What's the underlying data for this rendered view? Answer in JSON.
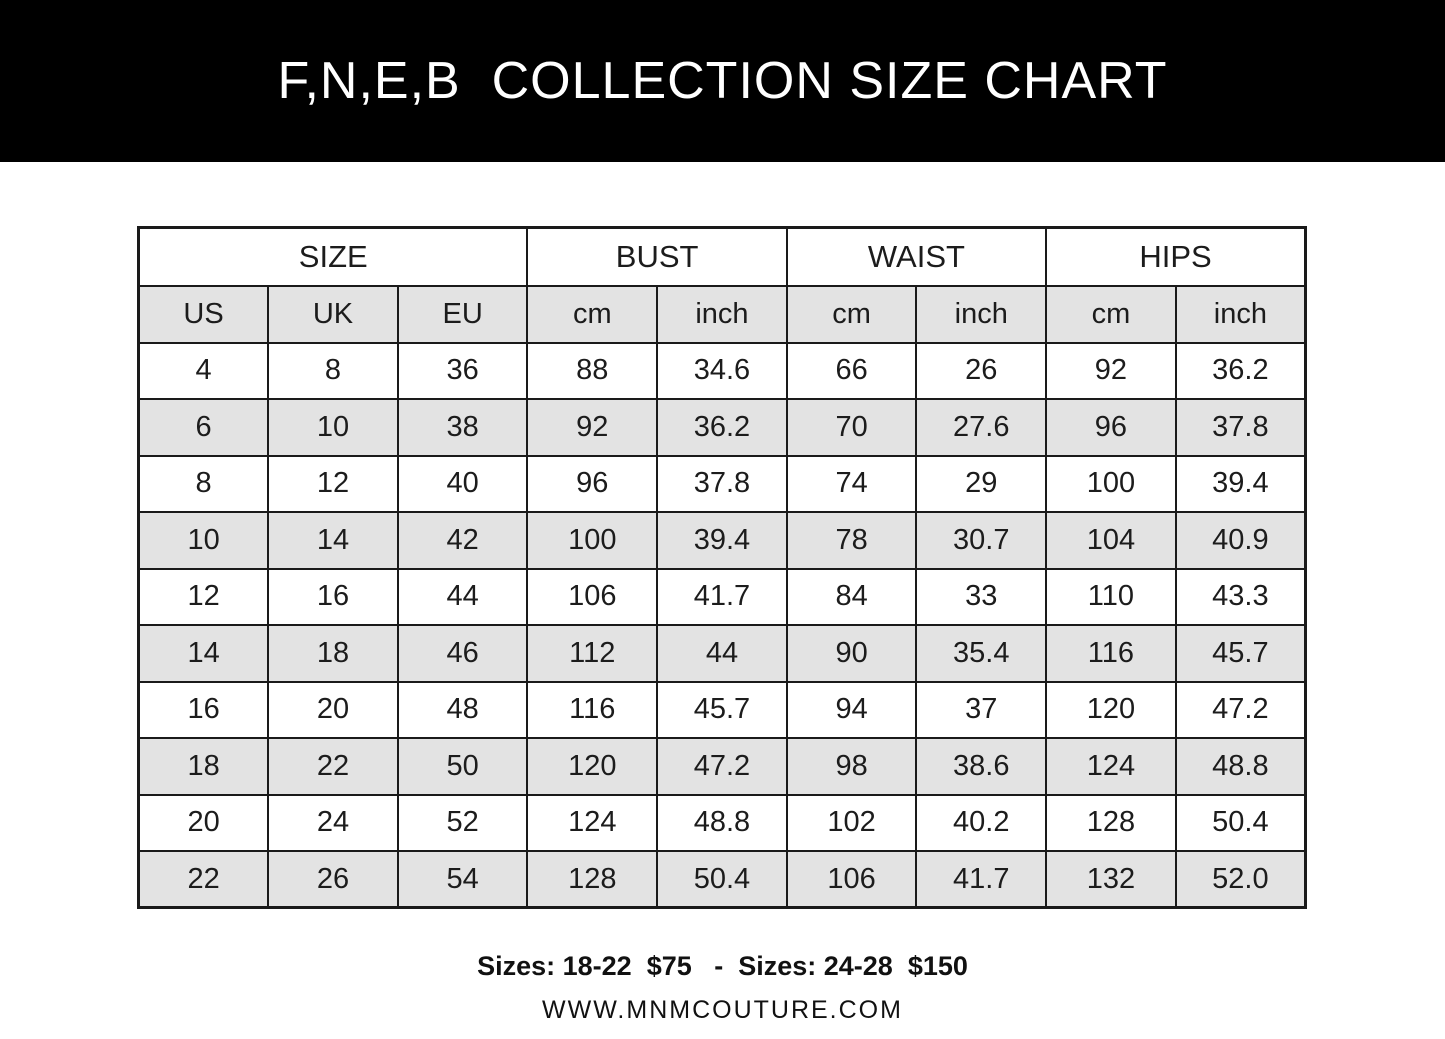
{
  "banner": {
    "title": "F,N,E,B  COLLECTION SIZE CHART",
    "background_color": "#000000",
    "text_color": "#ffffff"
  },
  "size_chart": {
    "column_groups": [
      {
        "label": "SIZE",
        "span": 3
      },
      {
        "label": "BUST",
        "span": 2
      },
      {
        "label": "WAIST",
        "span": 2
      },
      {
        "label": "HIPS",
        "span": 2
      }
    ],
    "columns": [
      "US",
      "UK",
      "EU",
      "cm",
      "inch",
      "cm",
      "inch",
      "cm",
      "inch"
    ],
    "rows": [
      [
        "4",
        "8",
        "36",
        "88",
        "34.6",
        "66",
        "26",
        "92",
        "36.2"
      ],
      [
        "6",
        "10",
        "38",
        "92",
        "36.2",
        "70",
        "27.6",
        "96",
        "37.8"
      ],
      [
        "8",
        "12",
        "40",
        "96",
        "37.8",
        "74",
        "29",
        "100",
        "39.4"
      ],
      [
        "10",
        "14",
        "42",
        "100",
        "39.4",
        "78",
        "30.7",
        "104",
        "40.9"
      ],
      [
        "12",
        "16",
        "44",
        "106",
        "41.7",
        "84",
        "33",
        "110",
        "43.3"
      ],
      [
        "14",
        "18",
        "46",
        "112",
        "44",
        "90",
        "35.4",
        "116",
        "45.7"
      ],
      [
        "16",
        "20",
        "48",
        "116",
        "45.7",
        "94",
        "37",
        "120",
        "47.2"
      ],
      [
        "18",
        "22",
        "50",
        "120",
        "47.2",
        "98",
        "38.6",
        "124",
        "48.8"
      ],
      [
        "20",
        "24",
        "52",
        "124",
        "48.8",
        "102",
        "40.2",
        "128",
        "50.4"
      ],
      [
        "22",
        "26",
        "54",
        "128",
        "50.4",
        "106",
        "41.7",
        "132",
        "52.0"
      ]
    ],
    "stripe_color": "#e3e3e3",
    "border_color": "#1a1a1a"
  },
  "footer": {
    "pricing": "Sizes: 18-22  $75   -  Sizes: 24-28  $150",
    "website": "WWW.MNMCOUTURE.COM"
  }
}
